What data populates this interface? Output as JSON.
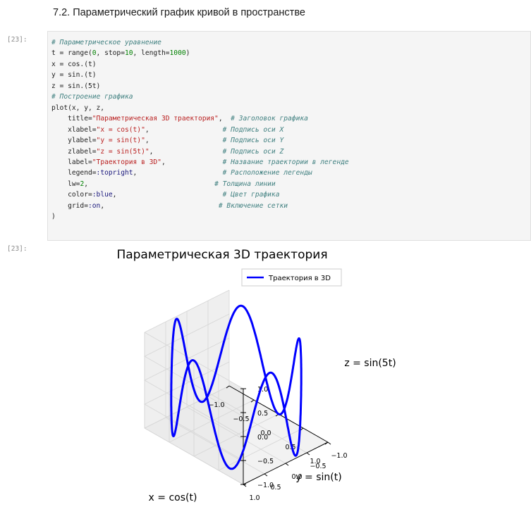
{
  "heading": "7.2. Параметрический график кривой в пространстве",
  "input_prompt": "[23]:",
  "output_prompt": "[23]:",
  "code_lines": [
    [
      {
        "t": "# Параметрическое уравнение",
        "c": "cm"
      }
    ],
    [
      {
        "t": "t = range(",
        "c": ""
      },
      {
        "t": "0",
        "c": "nu"
      },
      {
        "t": ", stop=",
        "c": ""
      },
      {
        "t": "10",
        "c": "nu"
      },
      {
        "t": ", length=",
        "c": ""
      },
      {
        "t": "1000",
        "c": "nu"
      },
      {
        "t": ")",
        "c": ""
      }
    ],
    [
      {
        "t": "x = cos.(t)",
        "c": ""
      }
    ],
    [
      {
        "t": "y = sin.(t)",
        "c": ""
      }
    ],
    [
      {
        "t": "z = sin.(5t)",
        "c": ""
      }
    ],
    [
      {
        "t": "# Построение графика",
        "c": "cm"
      }
    ],
    [
      {
        "t": "plot(x, y, z,",
        "c": ""
      }
    ],
    [
      {
        "t": "    title=",
        "c": ""
      },
      {
        "t": "\"Параметрическая 3D траектория\"",
        "c": "st"
      },
      {
        "t": ",  ",
        "c": ""
      },
      {
        "t": "# Заголовок графика",
        "c": "cm"
      }
    ],
    [
      {
        "t": "    xlabel=",
        "c": ""
      },
      {
        "t": "\"x = cos(t)\"",
        "c": "st"
      },
      {
        "t": ",                  ",
        "c": ""
      },
      {
        "t": "# Подпись оси X",
        "c": "cm"
      }
    ],
    [
      {
        "t": "    ylabel=",
        "c": ""
      },
      {
        "t": "\"y = sin(t)\"",
        "c": "st"
      },
      {
        "t": ",                  ",
        "c": ""
      },
      {
        "t": "# Подпись оси Y",
        "c": "cm"
      }
    ],
    [
      {
        "t": "    zlabel=",
        "c": ""
      },
      {
        "t": "\"z = sin(5t)\"",
        "c": "st"
      },
      {
        "t": ",                 ",
        "c": ""
      },
      {
        "t": "# Подпись оси Z",
        "c": "cm"
      }
    ],
    [
      {
        "t": "    label=",
        "c": ""
      },
      {
        "t": "\"Траектория в 3D\"",
        "c": "st"
      },
      {
        "t": ",              ",
        "c": ""
      },
      {
        "t": "# Название траектории в легенде",
        "c": "cm"
      }
    ],
    [
      {
        "t": "    legend=",
        "c": ""
      },
      {
        "t": ":topright",
        "c": "sy"
      },
      {
        "t": ",                     ",
        "c": ""
      },
      {
        "t": "# Расположение легенды",
        "c": "cm"
      }
    ],
    [
      {
        "t": "    lw=",
        "c": ""
      },
      {
        "t": "2",
        "c": "nu"
      },
      {
        "t": ",                               ",
        "c": ""
      },
      {
        "t": "# Толщина линии",
        "c": "cm"
      }
    ],
    [
      {
        "t": "    color=",
        "c": ""
      },
      {
        "t": ":blue",
        "c": "sy"
      },
      {
        "t": ",                          ",
        "c": ""
      },
      {
        "t": "# Цвет графика",
        "c": "cm"
      }
    ],
    [
      {
        "t": "    grid=",
        "c": ""
      },
      {
        "t": ":on",
        "c": "sy"
      },
      {
        "t": ",                            ",
        "c": ""
      },
      {
        "t": "# Включение сетки",
        "c": "cm"
      }
    ],
    [
      {
        "t": ")",
        "c": ""
      }
    ]
  ],
  "chart_data": {
    "type": "line3d",
    "title": "Параметрическая 3D траектория",
    "xlabel": "x = cos(t)",
    "ylabel": "y = sin(t)",
    "zlabel": "z = sin(5t)",
    "legend": {
      "label": "Траектория в 3D",
      "position": "top-right"
    },
    "x_ticks": [
      "−1.0",
      "−0.5",
      "0.0",
      "0.5",
      "1.0"
    ],
    "y_ticks": [
      "−1.0",
      "−0.5",
      "0.0",
      "0.5",
      "1.0"
    ],
    "z_ticks": [
      "−1.0",
      "−0.5",
      "0.0",
      "0.5",
      "1.0"
    ],
    "xlim": [
      -1,
      1
    ],
    "ylim": [
      -1,
      1
    ],
    "zlim": [
      -1,
      1
    ],
    "t_range": [
      0,
      10
    ],
    "n_points": 1000,
    "line_color": "#0000ff",
    "line_width": 2,
    "grid": true
  }
}
